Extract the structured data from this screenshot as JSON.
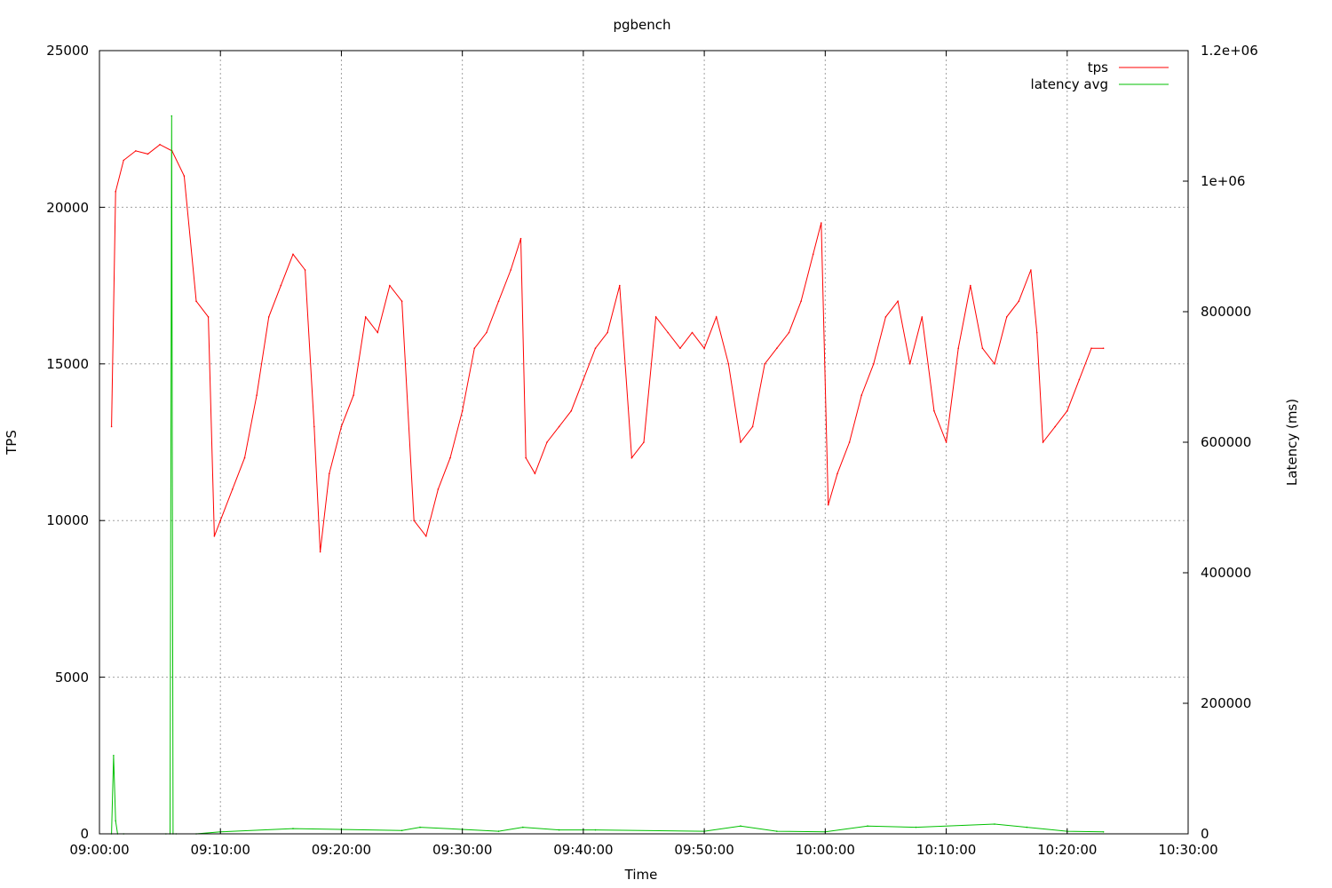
{
  "chart_data": {
    "type": "line",
    "title": "pgbench",
    "xlabel": "Time",
    "ylabel": "TPS",
    "y2label": "Latency (ms)",
    "x_ticks": [
      "09:00:00",
      "09:10:00",
      "09:20:00",
      "09:30:00",
      "09:40:00",
      "09:50:00",
      "10:00:00",
      "10:10:00",
      "10:20:00",
      "10:30:00"
    ],
    "y_ticks": [
      "0",
      "5000",
      "10000",
      "15000",
      "20000",
      "25000"
    ],
    "y2_ticks": [
      "0",
      "200000",
      "400000",
      "600000",
      "800000",
      "1e+06",
      "1.2e+06"
    ],
    "xlim": [
      "09:00:00",
      "10:30:00"
    ],
    "ylim": [
      0,
      25000
    ],
    "y2lim": [
      0,
      1200000
    ],
    "grid": true,
    "legend_position": "top-right",
    "colors": {
      "tps": "#ff0000",
      "latency": "#00c000",
      "grid": "#a0a0a0",
      "axis": "#000000"
    },
    "series": [
      {
        "name": "tps",
        "axis": "left",
        "color": "#ff0000",
        "x": [
          "09:01:00",
          "09:01:20",
          "09:02:00",
          "09:03:00",
          "09:04:00",
          "09:05:00",
          "09:06:00",
          "09:07:00",
          "09:08:00",
          "09:09:00",
          "09:09:30",
          "09:10:00",
          "09:11:00",
          "09:12:00",
          "09:13:00",
          "09:14:00",
          "09:15:00",
          "09:16:00",
          "09:17:00",
          "09:17:45",
          "09:18:15",
          "09:19:00",
          "09:20:00",
          "09:21:00",
          "09:22:00",
          "09:23:00",
          "09:24:00",
          "09:25:00",
          "09:26:00",
          "09:27:00",
          "09:28:00",
          "09:29:00",
          "09:30:00",
          "09:31:00",
          "09:32:00",
          "09:33:00",
          "09:34:00",
          "09:34:50",
          "09:35:15",
          "09:36:00",
          "09:37:00",
          "09:38:00",
          "09:39:00",
          "09:40:00",
          "09:41:00",
          "09:42:00",
          "09:43:00",
          "09:44:00",
          "09:45:00",
          "09:46:00",
          "09:47:00",
          "09:48:00",
          "09:49:00",
          "09:50:00",
          "09:51:00",
          "09:52:00",
          "09:53:00",
          "09:54:00",
          "09:55:00",
          "09:56:00",
          "09:57:00",
          "09:58:00",
          "09:59:00",
          "09:59:40",
          "10:00:15",
          "10:01:00",
          "10:02:00",
          "10:03:00",
          "10:04:00",
          "10:05:00",
          "10:06:00",
          "10:07:00",
          "10:08:00",
          "10:09:00",
          "10:10:00",
          "10:11:00",
          "10:12:00",
          "10:13:00",
          "10:14:00",
          "10:15:00",
          "10:16:00",
          "10:17:00",
          "10:17:30",
          "10:18:00",
          "10:19:00",
          "10:20:00",
          "10:21:00",
          "10:22:00",
          "10:23:00"
        ],
        "values": [
          13000,
          20500,
          21500,
          21800,
          21700,
          22000,
          21800,
          21000,
          17000,
          16500,
          9500,
          10000,
          11000,
          12000,
          14000,
          16500,
          17500,
          18500,
          18000,
          13000,
          9000,
          11500,
          13000,
          14000,
          16500,
          16000,
          17500,
          17000,
          10000,
          9500,
          11000,
          12000,
          13500,
          15500,
          16000,
          17000,
          18000,
          19000,
          12000,
          11500,
          12500,
          13000,
          13500,
          14500,
          15500,
          16000,
          17500,
          12000,
          12500,
          16500,
          16000,
          15500,
          16000,
          15500,
          16500,
          15000,
          12500,
          13000,
          15000,
          15500,
          16000,
          17000,
          18500,
          19500,
          10500,
          11500,
          12500,
          14000,
          15000,
          16500,
          17000,
          15000,
          16500,
          13500,
          12500,
          15500,
          17500,
          15500,
          15000,
          16500,
          17000,
          18000,
          16000,
          12500,
          13000,
          13500,
          14500,
          15500,
          15500
        ]
      },
      {
        "name": "latency avg",
        "axis": "right",
        "color": "#00c000",
        "x": [
          "09:01:00",
          "09:01:10",
          "09:01:20",
          "09:01:30",
          "09:02:00",
          "09:05:30",
          "09:05:50",
          "09:05:58",
          "09:06:05",
          "09:06:20",
          "09:08:00",
          "09:10:00",
          "09:16:00",
          "09:25:00",
          "09:26:30",
          "09:33:00",
          "09:35:00",
          "09:38:00",
          "09:41:00",
          "09:50:00",
          "09:53:00",
          "09:56:00",
          "10:00:00",
          "10:03:30",
          "10:07:30",
          "10:14:00",
          "10:16:40",
          "10:20:00",
          "10:23:00"
        ],
        "values": [
          0,
          120000,
          20000,
          0,
          0,
          0,
          0,
          1100000,
          0,
          0,
          0,
          3000,
          8000,
          5000,
          10000,
          4000,
          10000,
          6000,
          6000,
          4000,
          12000,
          4000,
          3000,
          12000,
          10000,
          15000,
          10000,
          4000,
          3000
        ]
      }
    ]
  }
}
